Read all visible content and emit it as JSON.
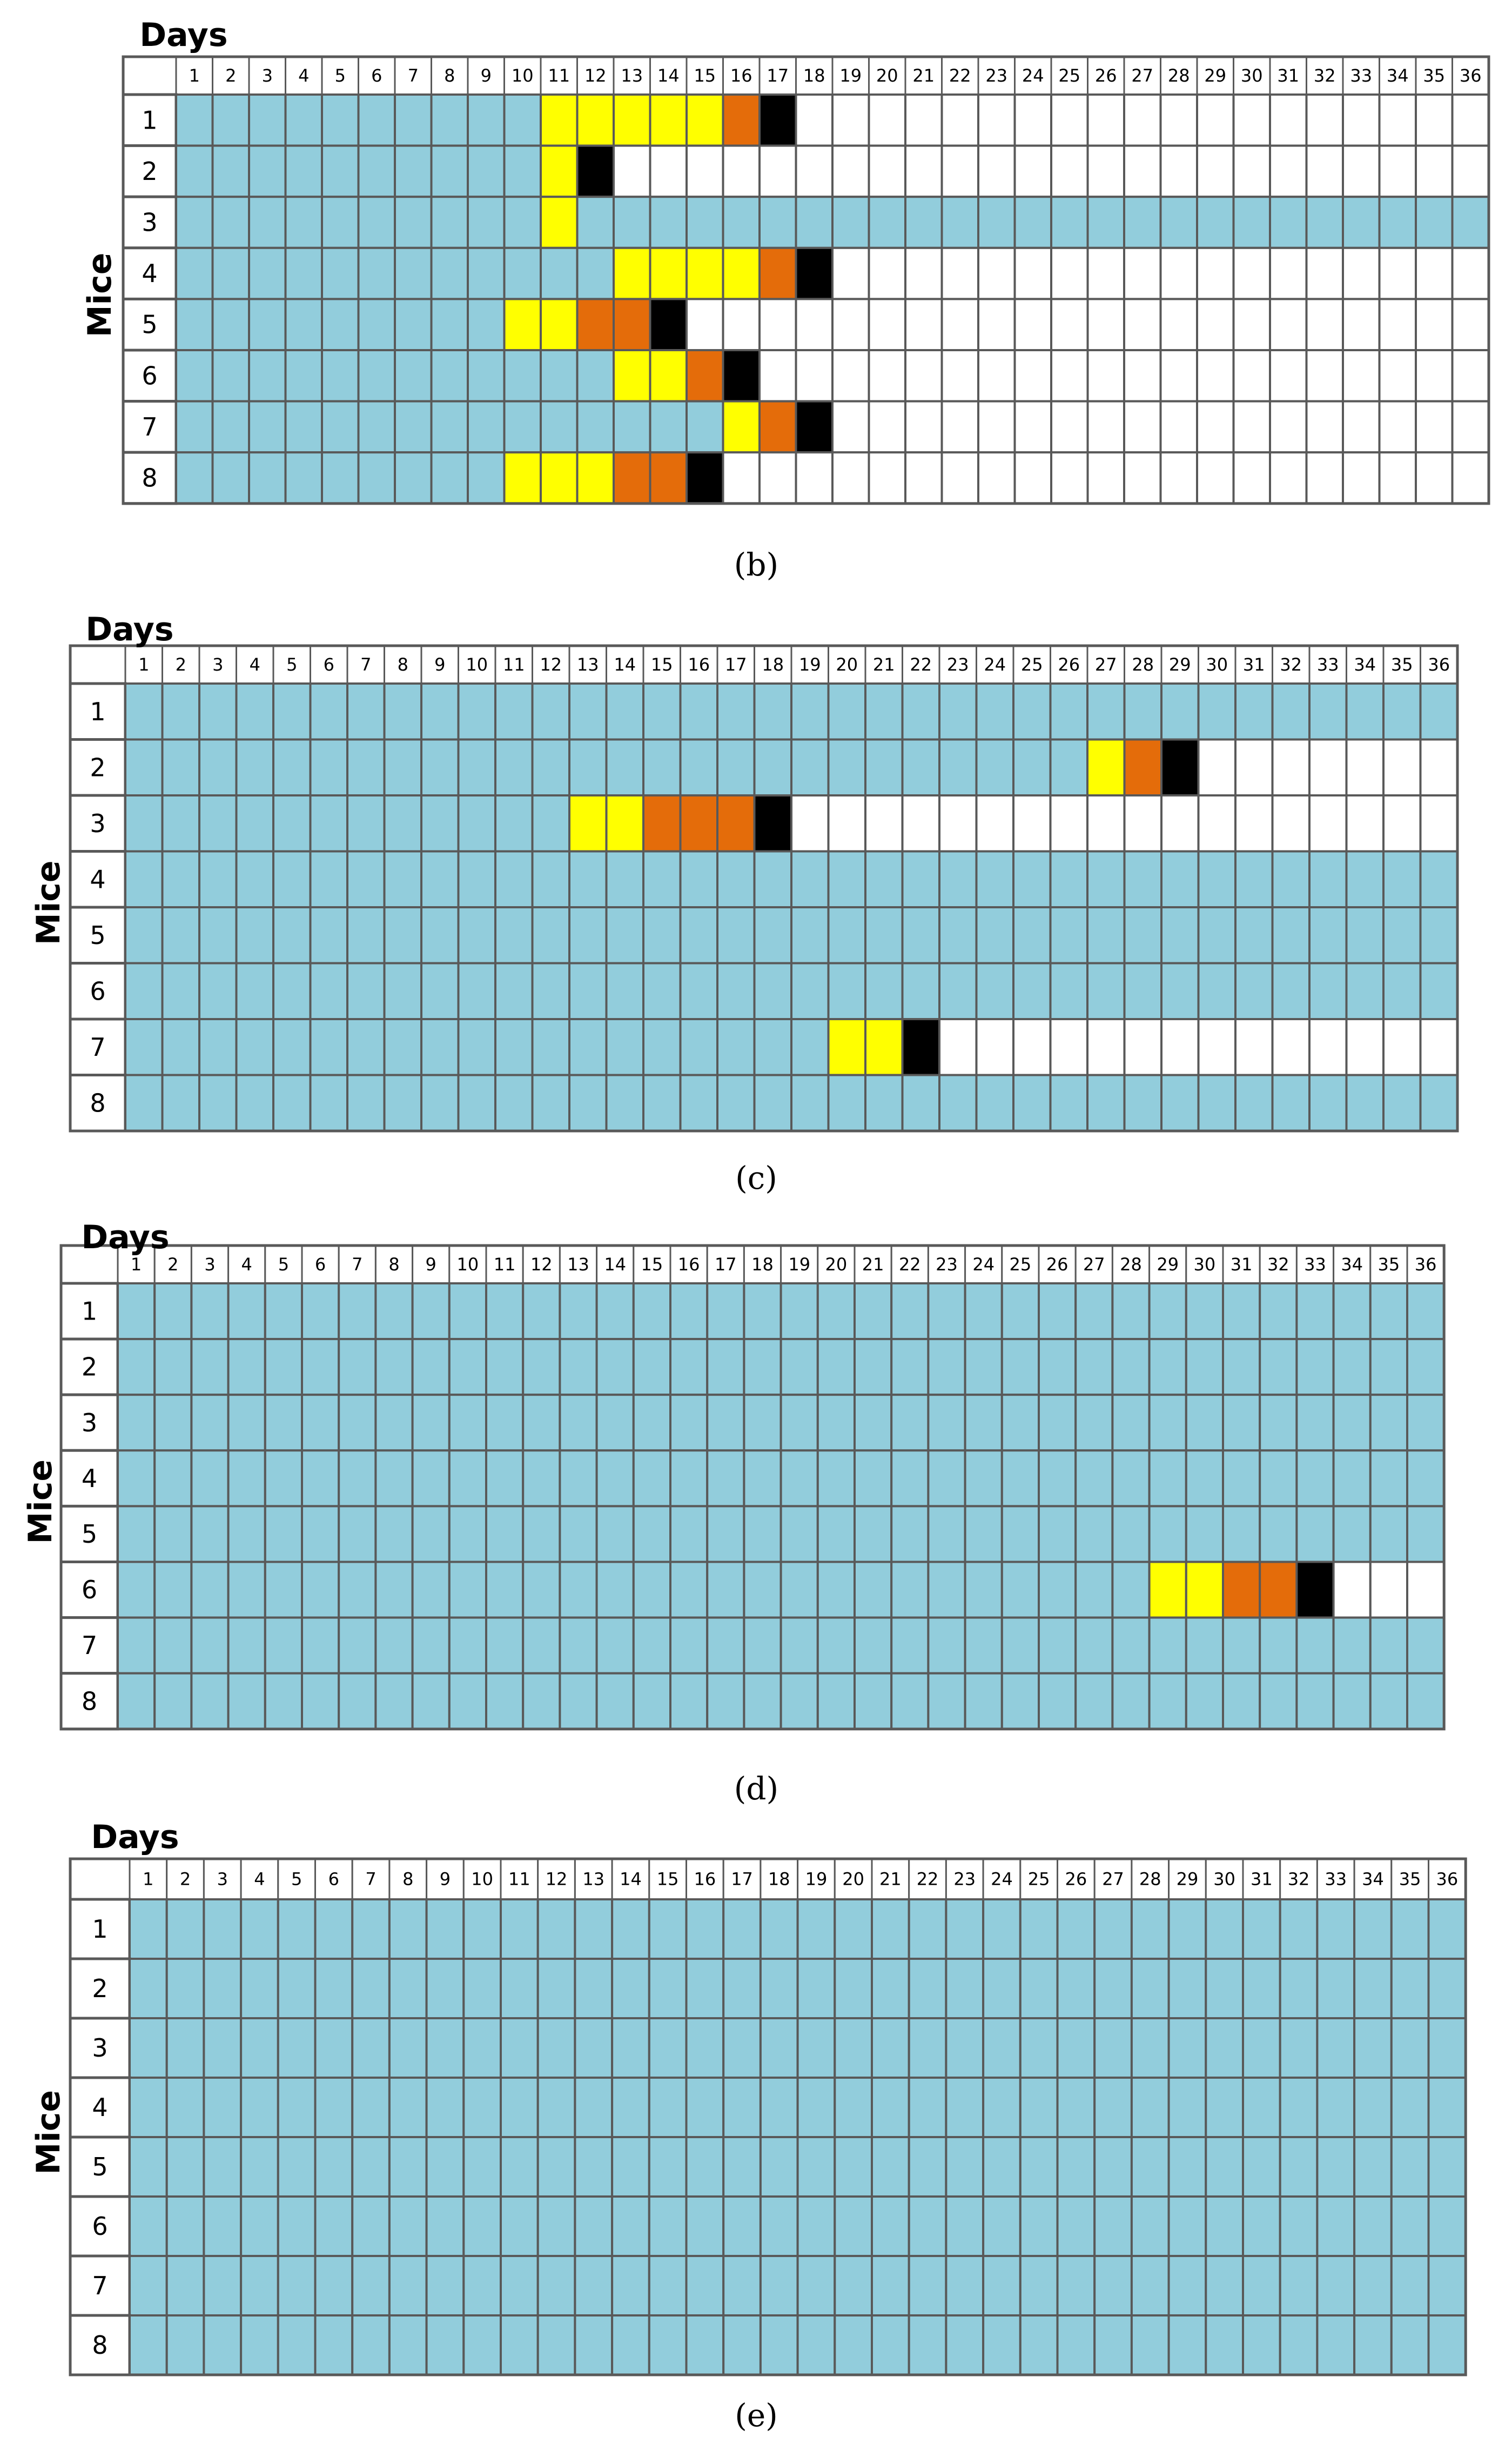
{
  "colors": {
    "healthy": "#92cddc",
    "stage1": "#ffff00",
    "stage2": "#e46c0a",
    "dead": "#000000",
    "after_death": "#ffffff",
    "grid": "#595959",
    "text": "#000000"
  },
  "chart_data": [
    {
      "type": "heatmap",
      "panel_label": "(b)",
      "xlabel": "Days",
      "ylabel": "Mice",
      "days": [
        1,
        2,
        3,
        4,
        5,
        6,
        7,
        8,
        9,
        10,
        11,
        12,
        13,
        14,
        15,
        16,
        17,
        18,
        19,
        20,
        21,
        22,
        23,
        24,
        25,
        26,
        27,
        28,
        29,
        30,
        31,
        32,
        33,
        34,
        35,
        36
      ],
      "mice": [
        1,
        2,
        3,
        4,
        5,
        6,
        7,
        8
      ],
      "events": [
        {
          "mouse": 1,
          "stage1": [
            11,
            12,
            13,
            14,
            15
          ],
          "stage2": [
            16
          ],
          "dead": 17
        },
        {
          "mouse": 2,
          "stage1": [
            11
          ],
          "stage2": [],
          "dead": 12
        },
        {
          "mouse": 3,
          "stage1": [
            11
          ],
          "stage2": [],
          "dead": null
        },
        {
          "mouse": 4,
          "stage1": [
            13,
            14,
            15,
            16
          ],
          "stage2": [
            17
          ],
          "dead": 18
        },
        {
          "mouse": 5,
          "stage1": [
            10,
            11
          ],
          "stage2": [
            12,
            13
          ],
          "dead": 14
        },
        {
          "mouse": 6,
          "stage1": [
            13,
            14
          ],
          "stage2": [
            15
          ],
          "dead": 16
        },
        {
          "mouse": 7,
          "stage1": [
            16
          ],
          "stage2": [
            17
          ],
          "dead": 18
        },
        {
          "mouse": 8,
          "stage1": [
            10,
            11,
            12
          ],
          "stage2": [
            13,
            14
          ],
          "dead": 15
        }
      ]
    },
    {
      "type": "heatmap",
      "panel_label": "(c)",
      "xlabel": "Days",
      "ylabel": "Mice",
      "days": [
        1,
        2,
        3,
        4,
        5,
        6,
        7,
        8,
        9,
        10,
        11,
        12,
        13,
        14,
        15,
        16,
        17,
        18,
        19,
        20,
        21,
        22,
        23,
        24,
        25,
        26,
        27,
        28,
        29,
        30,
        31,
        32,
        33,
        34,
        35,
        36
      ],
      "mice": [
        1,
        2,
        3,
        4,
        5,
        6,
        7,
        8
      ],
      "events": [
        {
          "mouse": 2,
          "stage1": [
            27
          ],
          "stage2": [
            28
          ],
          "dead": 29
        },
        {
          "mouse": 3,
          "stage1": [
            13,
            14
          ],
          "stage2": [
            15,
            16,
            17
          ],
          "dead": 18
        },
        {
          "mouse": 7,
          "stage1": [
            20,
            21
          ],
          "stage2": [],
          "dead": 22
        }
      ]
    },
    {
      "type": "heatmap",
      "panel_label": "(d)",
      "xlabel": "Days",
      "ylabel": "Mice",
      "days": [
        1,
        2,
        3,
        4,
        5,
        6,
        7,
        8,
        9,
        10,
        11,
        12,
        13,
        14,
        15,
        16,
        17,
        18,
        19,
        20,
        21,
        22,
        23,
        24,
        25,
        26,
        27,
        28,
        29,
        30,
        31,
        32,
        33,
        34,
        35,
        36
      ],
      "mice": [
        1,
        2,
        3,
        4,
        5,
        6,
        7,
        8
      ],
      "events": [
        {
          "mouse": 6,
          "stage1": [
            29,
            30
          ],
          "stage2": [
            31,
            32
          ],
          "dead": 33
        }
      ]
    },
    {
      "type": "heatmap",
      "panel_label": "(e)",
      "xlabel": "Days",
      "ylabel": "Mice",
      "days": [
        1,
        2,
        3,
        4,
        5,
        6,
        7,
        8,
        9,
        10,
        11,
        12,
        13,
        14,
        15,
        16,
        17,
        18,
        19,
        20,
        21,
        22,
        23,
        24,
        25,
        26,
        27,
        28,
        29,
        30,
        31,
        32,
        33,
        34,
        35,
        36
      ],
      "mice": [
        1,
        2,
        3,
        4,
        5,
        6,
        7,
        8
      ],
      "events": []
    }
  ]
}
